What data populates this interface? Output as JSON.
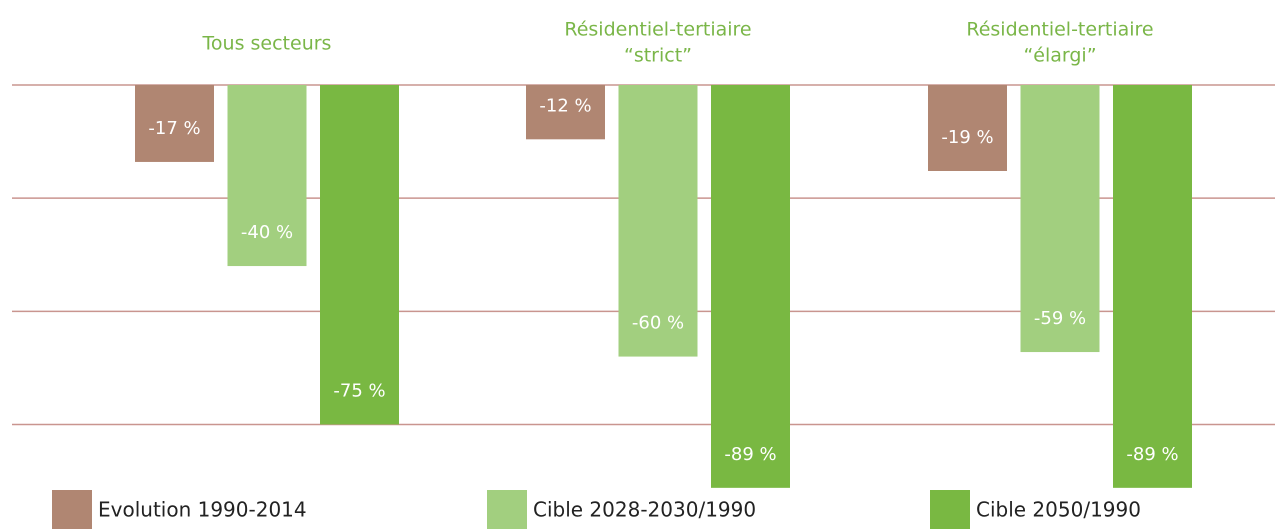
{
  "chart_data": {
    "type": "bar",
    "categories": [
      [
        "Tous secteurs"
      ],
      [
        "Résidentiel-tertiaire",
        "“strict”"
      ],
      [
        "Résidentiel-tertiaire",
        "“élargi”"
      ]
    ],
    "series": [
      {
        "name": "Evolution 1990-2014",
        "color": "#b08672",
        "values": [
          -17,
          -12,
          -19
        ],
        "value_labels": [
          "-17 %",
          "-12 %",
          "-19 %"
        ]
      },
      {
        "name": "Cible 2028-2030/1990",
        "color": "#a2cf7f",
        "values": [
          -40,
          -60,
          -59
        ],
        "value_labels": [
          "-40 %",
          "-60 %",
          "-59 %"
        ]
      },
      {
        "name": "Cible 2050/1990",
        "color": "#79b842",
        "values": [
          -75,
          -89,
          -89
        ],
        "value_labels": [
          "-75 %",
          "-89 %",
          "-89 %"
        ]
      }
    ],
    "ylim": [
      -95,
      0
    ],
    "yticks": [
      0,
      -25,
      -50,
      -75
    ],
    "grid": true,
    "grid_color": "#c9958f"
  }
}
